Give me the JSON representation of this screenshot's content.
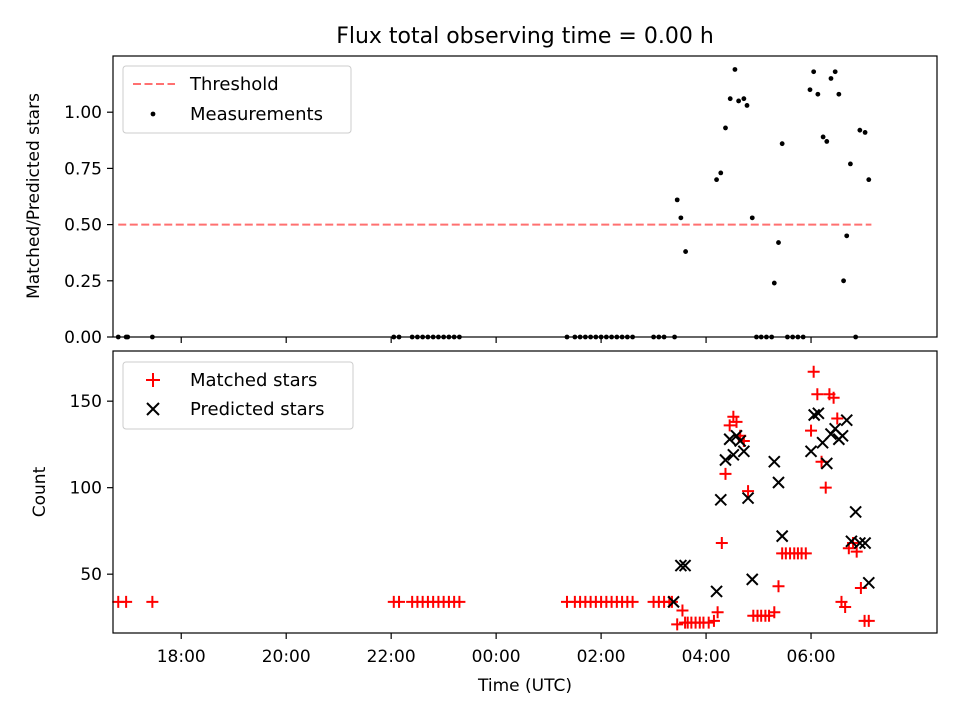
{
  "chart_data": [
    {
      "type": "scatter",
      "title": "Flux total observing time = 0.00 h",
      "xlabel": "",
      "ylabel": "Matched/Predicted stars",
      "xlim": [
        -7.3,
        8.4
      ],
      "ylim": [
        0,
        1.25
      ],
      "yticks": [
        0,
        0.25,
        0.5,
        0.75,
        1.0
      ],
      "ytick_labels": [
        "0.00",
        "0.25",
        "0.50",
        "0.75",
        "1.00"
      ],
      "legend": {
        "placement": "top-left",
        "entries": [
          "Threshold",
          "Measurements"
        ]
      },
      "series": [
        {
          "name": "Threshold",
          "kind": "dashed-line",
          "color": "#ff7070",
          "x": [
            -7.2,
            7.15
          ],
          "y": [
            0.5,
            0.5
          ]
        },
        {
          "name": "Measurements",
          "kind": "dot",
          "color": "#000000",
          "x": [
            -7.2,
            -7.05,
            -7.02,
            -6.55,
            -1.95,
            -1.85,
            -1.6,
            -1.5,
            -1.4,
            -1.3,
            -1.2,
            -1.1,
            -1.0,
            -0.9,
            -0.8,
            -0.7,
            1.35,
            1.5,
            1.6,
            1.7,
            1.8,
            1.9,
            2.0,
            2.1,
            2.2,
            2.3,
            2.4,
            2.5,
            2.6,
            3.0,
            3.1,
            3.2,
            3.4,
            3.45,
            3.52,
            3.61,
            4.2,
            4.28,
            4.37,
            4.46,
            4.55,
            4.62,
            4.72,
            4.78,
            4.88,
            4.96,
            5.05,
            5.15,
            5.25,
            5.3,
            5.38,
            5.45,
            5.55,
            5.65,
            5.75,
            5.85,
            5.98,
            6.05,
            6.13,
            6.23,
            6.3,
            6.38,
            6.46,
            6.53,
            6.62,
            6.68,
            6.75,
            6.85,
            6.93,
            7.03,
            7.1
          ],
          "y": [
            0,
            0,
            0,
            0,
            0,
            0,
            0,
            0,
            0,
            0,
            0,
            0,
            0,
            0,
            0,
            0,
            0,
            0,
            0,
            0,
            0,
            0,
            0,
            0,
            0,
            0,
            0,
            0,
            0,
            0,
            0,
            0,
            0,
            0.61,
            0.53,
            0.38,
            0.7,
            0.73,
            0.93,
            1.06,
            1.19,
            1.05,
            1.06,
            1.03,
            0.53,
            0,
            0,
            0,
            0,
            0.24,
            0.42,
            0.86,
            0,
            0,
            0,
            0,
            1.1,
            1.18,
            1.08,
            0.89,
            0.87,
            1.15,
            1.18,
            1.08,
            0.25,
            0.45,
            0.77,
            0,
            0.92,
            0.91,
            0.7
          ]
        }
      ]
    },
    {
      "type": "scatter",
      "title": "",
      "xlabel": "Time (UTC)",
      "ylabel": "Count",
      "xlim": [
        -7.3,
        8.4
      ],
      "ylim": [
        16,
        179
      ],
      "yticks": [
        50,
        100,
        150
      ],
      "ytick_labels": [
        "50",
        "100",
        "150"
      ],
      "xticks": [
        -6,
        -4,
        -2,
        0,
        2,
        4,
        6
      ],
      "xtick_labels": [
        "18:00",
        "20:00",
        "22:00",
        "00:00",
        "02:00",
        "04:00",
        "06:00"
      ],
      "legend": {
        "placement": "top-left",
        "entries": [
          "Matched stars",
          "Predicted stars"
        ]
      },
      "series": [
        {
          "name": "Matched stars",
          "kind": "plus",
          "color": "#ff0000",
          "x": [
            -7.2,
            -7.05,
            -6.55,
            -1.95,
            -1.85,
            -1.6,
            -1.5,
            -1.4,
            -1.3,
            -1.2,
            -1.1,
            -1.0,
            -0.9,
            -0.8,
            -0.7,
            1.35,
            1.5,
            1.6,
            1.7,
            1.8,
            1.9,
            2.0,
            2.1,
            2.2,
            2.3,
            2.4,
            2.5,
            2.6,
            3.0,
            3.1,
            3.2,
            3.3,
            3.35,
            3.45,
            3.55,
            3.6,
            3.65,
            3.72,
            3.8,
            3.88,
            3.95,
            4.05,
            4.15,
            4.22,
            4.3,
            4.37,
            4.45,
            4.52,
            4.58,
            4.65,
            4.72,
            4.8,
            4.9,
            4.98,
            5.05,
            5.13,
            5.2,
            5.3,
            5.38,
            5.45,
            5.52,
            5.6,
            5.68,
            5.75,
            5.82,
            5.9,
            6.0,
            6.05,
            6.12,
            6.2,
            6.28,
            6.35,
            6.43,
            6.5,
            6.58,
            6.65,
            6.72,
            6.8,
            6.87,
            6.95,
            7.02,
            7.1
          ],
          "y": [
            34,
            34,
            34,
            34,
            34,
            34,
            34,
            34,
            34,
            34,
            34,
            34,
            34,
            34,
            34,
            34,
            34,
            34,
            34,
            34,
            34,
            34,
            34,
            34,
            34,
            34,
            34,
            34,
            34,
            34,
            34,
            34,
            34,
            21,
            29,
            22,
            22,
            22,
            22,
            22,
            22,
            22,
            23,
            28,
            68,
            108,
            136,
            141,
            138,
            130,
            127,
            98,
            26,
            26,
            26,
            26,
            26,
            28,
            43,
            62,
            62,
            62,
            62,
            62,
            62,
            62,
            133,
            167,
            154,
            115,
            100,
            154,
            152,
            140,
            34,
            31,
            65,
            68,
            63,
            42,
            23,
            23
          ]
        },
        {
          "name": "Predicted stars",
          "kind": "x",
          "color": "#000000",
          "x": [
            3.38,
            3.52,
            3.6,
            4.2,
            4.28,
            4.37,
            4.45,
            4.52,
            4.58,
            4.65,
            4.72,
            4.8,
            4.88,
            5.3,
            5.38,
            5.45,
            6.0,
            6.06,
            6.14,
            6.22,
            6.3,
            6.38,
            6.46,
            6.53,
            6.6,
            6.68,
            6.77,
            6.85,
            6.93,
            7.03,
            7.1
          ],
          "y": [
            34,
            55,
            55,
            40,
            93,
            116,
            128,
            119,
            130,
            127,
            121,
            94,
            47,
            115,
            103,
            72,
            121,
            142,
            143,
            126,
            114,
            131,
            134,
            128,
            130,
            139,
            69,
            86,
            68,
            68,
            45
          ]
        }
      ]
    }
  ]
}
